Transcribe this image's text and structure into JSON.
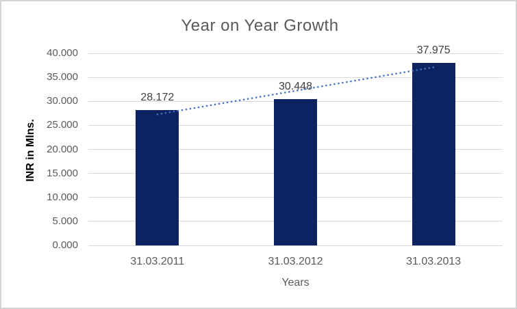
{
  "chart_data": {
    "type": "bar",
    "title": "Year on Year Growth",
    "xlabel": "Years",
    "ylabel": "INR in Mlns.",
    "categories": [
      "31.03.2011",
      "31.03.2012",
      "31.03.2013"
    ],
    "values": [
      28172,
      30448,
      37975
    ],
    "value_labels": [
      "28.172",
      "30.448",
      "37.975"
    ],
    "y_ticks": [
      {
        "value": 0,
        "label": "0.000"
      },
      {
        "value": 5000,
        "label": "5.000"
      },
      {
        "value": 10000,
        "label": "10.000"
      },
      {
        "value": 15000,
        "label": "15.000"
      },
      {
        "value": 20000,
        "label": "20.000"
      },
      {
        "value": 25000,
        "label": "25.000"
      },
      {
        "value": 30000,
        "label": "30.000"
      },
      {
        "value": 35000,
        "label": "35.000"
      },
      {
        "value": 40000,
        "label": "40.000"
      }
    ],
    "ylim": [
      0,
      40000
    ],
    "grid": true,
    "legend": "none",
    "trendline": {
      "type": "linear",
      "style": "dotted"
    },
    "colors": {
      "bar": "#0c2261",
      "trendline": "#4472c4",
      "gridline": "#d9d9d9",
      "title_text": "#595959",
      "axis_text": "#595959",
      "data_label_text": "#404040",
      "y_axis_title_text": "#000000",
      "border": "#d4d4d4"
    }
  }
}
